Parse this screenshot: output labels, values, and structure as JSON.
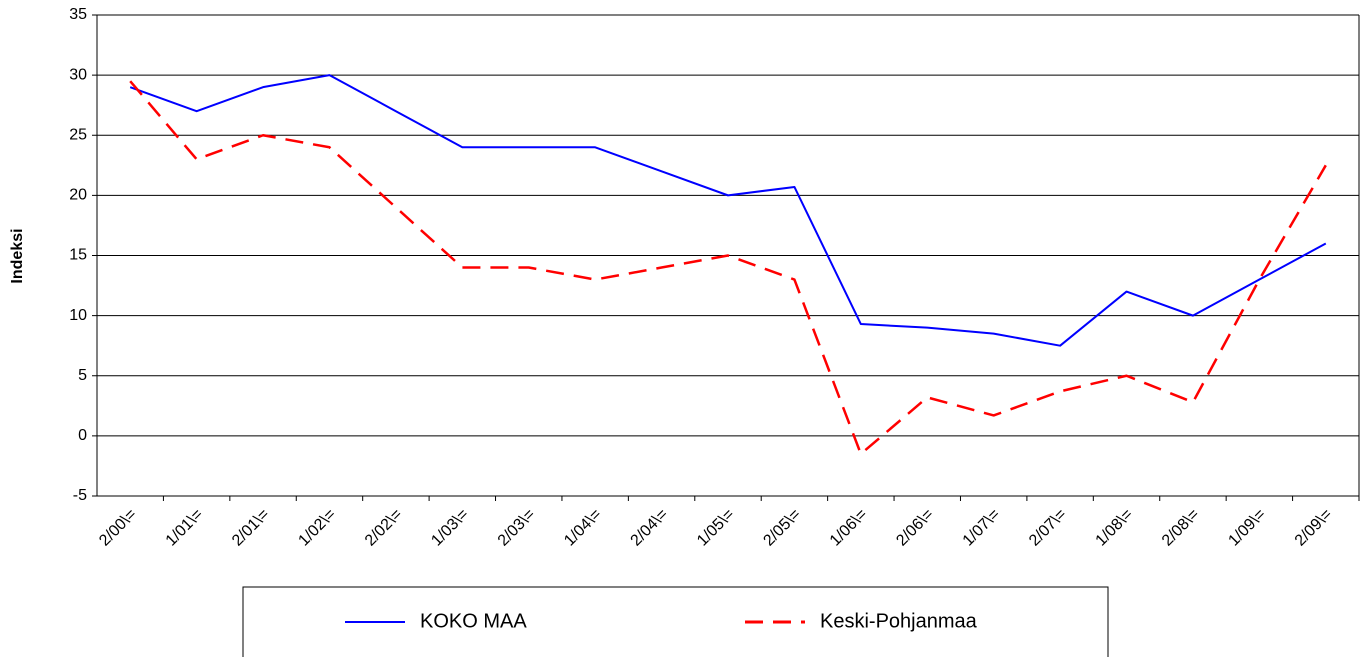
{
  "chart_data": {
    "type": "line",
    "ylabel": "Indeksi",
    "categories": [
      "2/00\\=",
      "1/01\\=",
      "2/01\\=",
      "1/02\\=",
      "2/02\\=",
      "1/03\\=",
      "2/03\\=",
      "1/04\\=",
      "2/04\\=",
      "1/05\\=",
      "2/05\\=",
      "1/06\\=",
      "2/06\\=",
      "1/07\\=",
      "2/07\\=",
      "1/08\\=",
      "2/08\\=",
      "1/09\\=",
      "2/09\\="
    ],
    "series": [
      {
        "name": "KOKO MAA",
        "color": "#0000ff",
        "dashed": false,
        "values": [
          29,
          27,
          29,
          30,
          27,
          24,
          24,
          24,
          22,
          20,
          20.7,
          9.3,
          9,
          8.5,
          7.5,
          12,
          10,
          13,
          16
        ]
      },
      {
        "name": "Keski-Pohjanmaa",
        "color": "#ff0000",
        "dashed": true,
        "values": [
          29.5,
          23,
          25,
          24,
          19,
          14,
          14,
          13,
          14,
          15,
          13,
          -1.5,
          3.2,
          1.7,
          3.7,
          5,
          2.8,
          13,
          22.5
        ]
      }
    ],
    "ylim": [
      -5,
      35
    ],
    "yticks": [
      -5,
      0,
      5,
      10,
      15,
      20,
      25,
      30,
      35
    ],
    "grid": true,
    "legend": "bottom"
  }
}
